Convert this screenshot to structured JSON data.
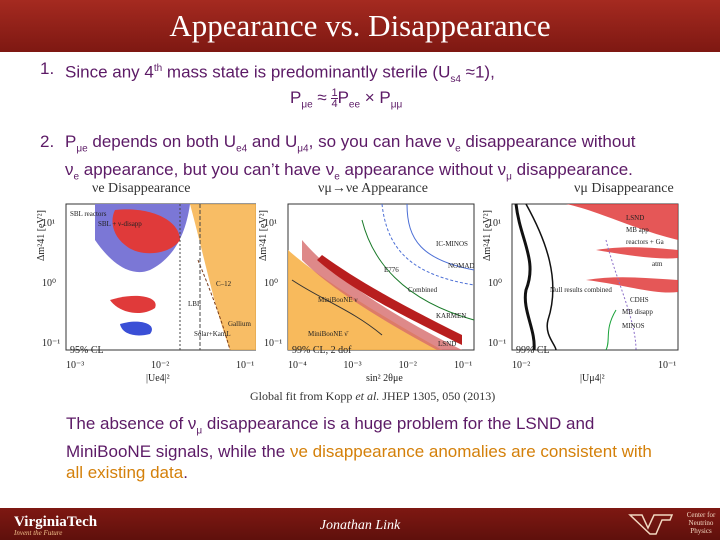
{
  "title": "Appearance vs. Disappearance",
  "bullets": [
    {
      "num": "1.",
      "text_a": "Since any 4",
      "sup": "th",
      "text_b": " mass state is predominantly sterile  (U",
      "sub": "s4",
      "text_c": " ≈1),"
    },
    {
      "num": "2.",
      "line1": "P",
      "line1_sub": "μe",
      "line1_rest": " depends on  both U",
      "u1_sub": "e4",
      "and": " and U",
      "u2_sub": "μ4",
      "line1_end": ", so you can have ν",
      "nu1_sub": "e",
      "line1_tail": " disappearance without",
      "line2_a": "ν",
      "line2_sub1": "e",
      "line2_b": " appearance, but you can’t have ν",
      "line2_sub2": "e",
      "line2_c": " appearance without ν",
      "line2_sub3": "μ",
      "line2_d": " disappearance."
    }
  ],
  "formula": {
    "lhs": "P",
    "lhs_sub": "μe",
    "approx": " ≈ ",
    "num": "1",
    "den": "4",
    "p1": "P",
    "p1_sub": "ee",
    "times": " × P",
    "p2_sub": "μμ"
  },
  "panels": [
    {
      "label": "νe Disappearance",
      "cl": "95% CL",
      "xlabel": "|Ue4|²",
      "ylabel": "Δm²41 [eV²]",
      "xticks": [
        "10⁻³",
        "10⁻²",
        "10⁻¹"
      ],
      "yticks": [
        "10¹",
        "10⁰",
        "10⁻¹"
      ],
      "annotations": [
        "SBL reactors",
        "SBL + ν-disapp",
        "C–12",
        "Gallium",
        "LBL",
        "Solar+KamL"
      ]
    },
    {
      "label": "νμ→νe Appearance",
      "cl": "99% CL, 2 dof",
      "xlabel": "sin² 2θμe",
      "ylabel": "Δm²41 [eV²]",
      "xticks": [
        "10⁻⁴",
        "10⁻³",
        "10⁻²",
        "10⁻¹"
      ],
      "yticks": [
        "10¹",
        "10⁰",
        "10⁻¹"
      ],
      "annotations": [
        "IC-MINOS",
        "NOMAD",
        "E776",
        "Combined",
        "MiniBooNE ν",
        "KARMEN",
        "LSND",
        "MiniBooNE ν̄"
      ]
    },
    {
      "label": "νμ Disappearance",
      "cl": "99% CL",
      "xlabel": "|Uμ4|²",
      "ylabel": "Δm²41 [eV²]",
      "xticks": [
        "10⁻²",
        "10⁻¹"
      ],
      "yticks": [
        "10¹",
        "10⁰",
        "10⁻¹"
      ],
      "annotations": [
        "LSND",
        "MB app",
        "reactors + Ga",
        "Null results combined",
        "CDHS",
        "MB disapp",
        "MINOS",
        "atm"
      ]
    }
  ],
  "caption": {
    "a": "Global fit from Kopp ",
    "b": "et al.",
    "c": " JHEP 1305, 050 (2013)"
  },
  "conclusion": {
    "a": "The absence of ν",
    "a_sub": "μ",
    "b": " disappearance is a huge problem for the LSND and MiniBooNE signals, while the ",
    "hl": "νe disappearance anomalies are consistent with all existing data",
    "end": "."
  },
  "footer": {
    "university": "VirginiaTech",
    "tagline": "Invent the Future",
    "presenter": "Jonathan Link",
    "center": "Center for Neutrino Physics"
  },
  "colors": {
    "title_bg": "#8b1f1a",
    "text": "#5c1a66",
    "highlight": "#d4800a"
  }
}
